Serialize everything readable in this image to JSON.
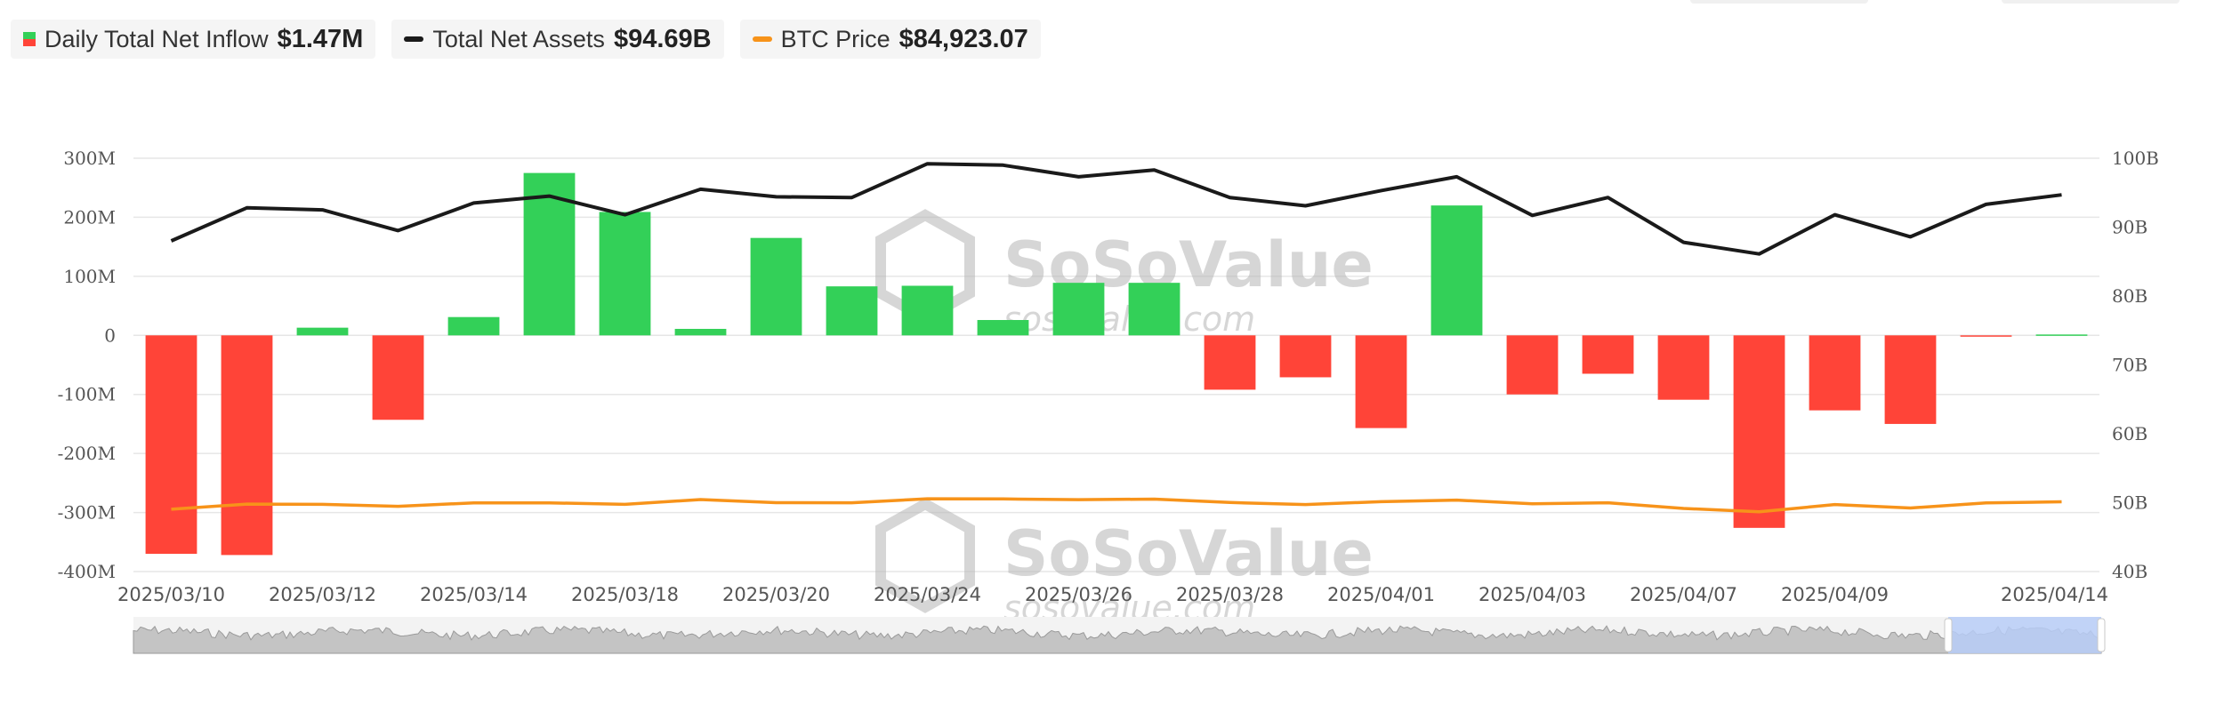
{
  "legend": {
    "inflow": {
      "label": "Daily Total Net Inflow",
      "value": "$1.47M"
    },
    "assets": {
      "label": "Total Net Assets",
      "value": "$94.69B"
    },
    "btc": {
      "label": "BTC Price",
      "value": "$84,923.07"
    }
  },
  "colors": {
    "positive": "#33d058",
    "negative": "#ff4438",
    "assets_line": "#1a1a1a",
    "btc_line": "#f7931a",
    "navigator_fill": "#c4c4c4",
    "navigator_window": "#b7cdf7"
  },
  "watermark": {
    "brand": "SoSoValue",
    "url": "sosovalue.com"
  },
  "chart_data": {
    "type": "bar",
    "y_left_ticks": [
      "300M",
      "200M",
      "100M",
      "0",
      "-100M",
      "-200M",
      "-300M",
      "-400M"
    ],
    "y_left_range": [
      -400,
      300
    ],
    "y_right_ticks": [
      "100B",
      "90B",
      "80B",
      "70B",
      "60B",
      "50B",
      "40B"
    ],
    "y_right_range": [
      40,
      100
    ],
    "x_tick_labels": [
      "2025/03/10",
      "2025/03/12",
      "2025/03/14",
      "2025/03/18",
      "2025/03/20",
      "2025/03/24",
      "2025/03/26",
      "2025/03/28",
      "2025/04/01",
      "2025/04/03",
      "2025/04/07",
      "2025/04/09",
      "2025/04/14"
    ],
    "categories": [
      "2025/03/10",
      "2025/03/11",
      "2025/03/12",
      "2025/03/13",
      "2025/03/14",
      "2025/03/17",
      "2025/03/18",
      "2025/03/19",
      "2025/03/20",
      "2025/03/21",
      "2025/03/24",
      "2025/03/25",
      "2025/03/26",
      "2025/03/27",
      "2025/03/28",
      "2025/03/31",
      "2025/04/01",
      "2025/04/02",
      "2025/04/03",
      "2025/04/04",
      "2025/04/07",
      "2025/04/08",
      "2025/04/09",
      "2025/04/10",
      "2025/04/11",
      "2025/04/14"
    ],
    "series": [
      {
        "name": "Daily Total Net Inflow",
        "unit": "M",
        "axis": "left",
        "values": [
          -370,
          -372,
          13,
          -143,
          31,
          275,
          209,
          11,
          165,
          83,
          84,
          26,
          89,
          89,
          -92,
          -71,
          -157,
          220,
          -100,
          -65,
          -109,
          -326,
          -127,
          -150,
          -1,
          1.47
        ]
      },
      {
        "name": "Total Net Assets",
        "unit": "B",
        "axis": "right",
        "values": [
          88.0,
          92.8,
          92.5,
          89.5,
          93.5,
          94.5,
          91.8,
          95.5,
          94.4,
          94.3,
          99.2,
          99.0,
          97.3,
          98.3,
          94.3,
          93.1,
          95.3,
          97.3,
          91.7,
          94.3,
          87.8,
          86.1,
          91.8,
          88.6,
          93.3,
          94.69
        ]
      },
      {
        "name": "BTC Price",
        "axis": "hidden",
        "values": [
          78532,
          82932,
          82700,
          81066,
          84040,
          84000,
          82716,
          86850,
          84200,
          84088,
          87500,
          87400,
          86800,
          87200,
          84350,
          82600,
          85000,
          86350,
          83200,
          84070,
          79200,
          76300,
          82600,
          79600,
          83900,
          84923.07
        ]
      }
    ]
  }
}
